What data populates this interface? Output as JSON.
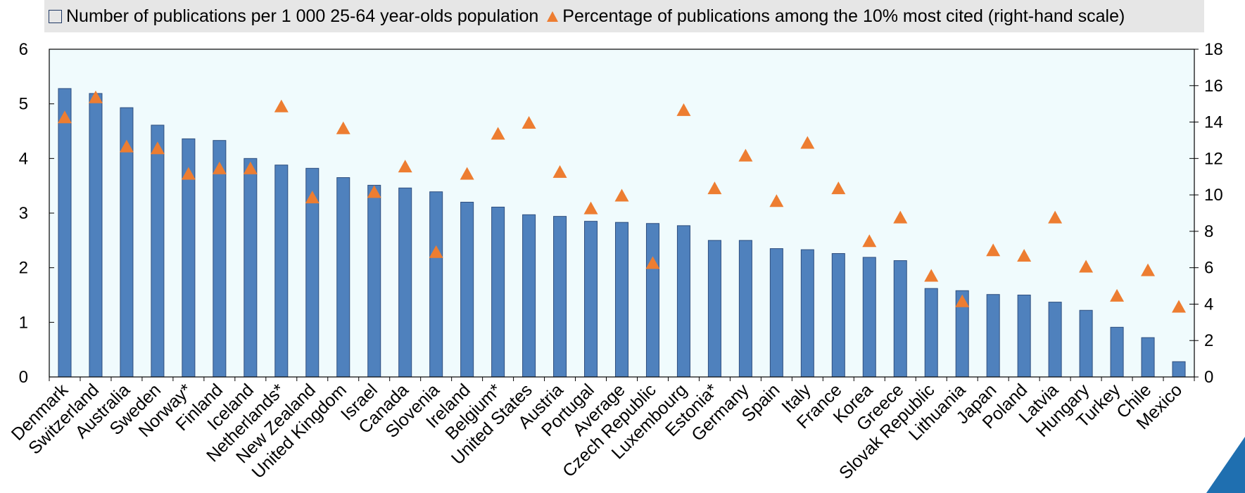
{
  "legend": {
    "bar_label": "Number of publications per 1 000 25-64 year-olds population",
    "marker_label": "Percentage of publications among the 10% most cited (right-hand scale)"
  },
  "colors": {
    "bar": "#4f81bd",
    "bar_edge": "#2f4f7f",
    "marker": "#ed7d31",
    "plot_bg": "#f0fbfd"
  },
  "chart_data": {
    "type": "bar",
    "categories": [
      "Denmark",
      "Switzerland",
      "Australia",
      "Sweden",
      "Norway*",
      "Finland",
      "Iceland",
      "Netherlands*",
      "New Zealand",
      "United Kingdom",
      "Israel",
      "Canada",
      "Slovenia",
      "Ireland",
      "Belgium*",
      "United States",
      "Austria",
      "Portugal",
      "Average",
      "Czech Republic",
      "Luxembourg",
      "Estonia*",
      "Germany",
      "Spain",
      "Italy",
      "France",
      "Korea",
      "Greece",
      "Slovak Republic",
      "Lithuania",
      "Japan",
      "Poland",
      "Latvia",
      "Hungary",
      "Turkey",
      "Chile",
      "Mexico"
    ],
    "series": [
      {
        "name": "Number of publications per 1 000 25-64 year-olds population",
        "type": "bar",
        "axis": "left",
        "values": [
          5.28,
          5.19,
          4.93,
          4.61,
          4.36,
          4.33,
          4.0,
          3.88,
          3.82,
          3.65,
          3.51,
          3.46,
          3.39,
          3.2,
          3.11,
          2.97,
          2.94,
          2.85,
          2.83,
          2.81,
          2.77,
          2.5,
          2.5,
          2.35,
          2.33,
          2.26,
          2.19,
          2.13,
          1.62,
          1.58,
          1.51,
          1.5,
          1.37,
          1.22,
          0.91,
          0.72,
          0.28
        ]
      },
      {
        "name": "Percentage of publications among the 10% most cited (right-hand scale)",
        "type": "marker",
        "axis": "right",
        "values": [
          14.2,
          15.3,
          12.6,
          12.5,
          11.1,
          11.4,
          11.4,
          14.8,
          9.8,
          13.6,
          10.1,
          11.5,
          6.8,
          11.1,
          13.3,
          13.9,
          11.2,
          9.2,
          9.9,
          6.2,
          14.6,
          10.3,
          12.1,
          9.6,
          12.8,
          10.3,
          7.4,
          8.7,
          5.5,
          4.1,
          6.9,
          6.6,
          8.7,
          6.0,
          4.4,
          5.8,
          3.8
        ]
      }
    ],
    "yticks_left": [
      "0",
      "1",
      "2",
      "3",
      "4",
      "5",
      "6"
    ],
    "yticks_right": [
      "0",
      "2",
      "4",
      "6",
      "8",
      "10",
      "12",
      "14",
      "16",
      "18"
    ],
    "ylim_left": [
      0,
      6
    ],
    "ylim_right": [
      0,
      18
    ],
    "legend_position": "top"
  }
}
